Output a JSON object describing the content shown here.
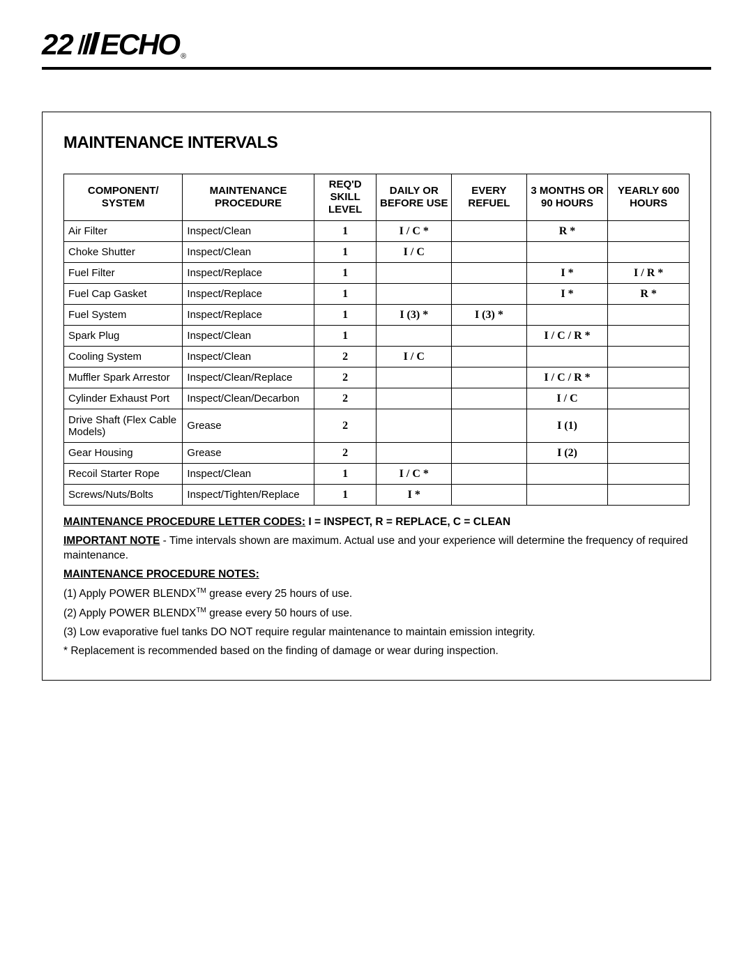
{
  "page_number": "22",
  "logo_text": "ECHO",
  "logo_reg": "®",
  "section_title": "MAINTENANCE INTERVALS",
  "table": {
    "headers": {
      "component": "COMPONENT/ SYSTEM",
      "procedure": "MAINTENANCE PROCEDURE",
      "skill": "REQ'D SKILL LEVEL",
      "daily": "DAILY OR BEFORE USE",
      "refuel": "EVERY REFUEL",
      "three_months": "3 MONTHS OR 90 HOURS",
      "yearly": "YEARLY 600 HOURS"
    },
    "rows": [
      {
        "component": "Air Filter",
        "procedure": "Inspect/Clean",
        "skill": "1",
        "daily": "I / C *",
        "refuel": "",
        "three_months": "R *",
        "yearly": ""
      },
      {
        "component": "Choke Shutter",
        "procedure": "Inspect/Clean",
        "skill": "1",
        "daily": "I / C",
        "refuel": "",
        "three_months": "",
        "yearly": ""
      },
      {
        "component": "Fuel Filter",
        "procedure": "Inspect/Replace",
        "skill": "1",
        "daily": "",
        "refuel": "",
        "three_months": "I *",
        "yearly": "I / R *"
      },
      {
        "component": "Fuel Cap Gasket",
        "procedure": "Inspect/Replace",
        "skill": "1",
        "daily": "",
        "refuel": "",
        "three_months": "I *",
        "yearly": "R *"
      },
      {
        "component": "Fuel System",
        "procedure": "Inspect/Replace",
        "skill": "1",
        "daily": "I (3) *",
        "refuel": "I (3) *",
        "three_months": "",
        "yearly": ""
      },
      {
        "component": "Spark Plug",
        "procedure": "Inspect/Clean",
        "skill": "1",
        "daily": "",
        "refuel": "",
        "three_months": "I / C / R *",
        "yearly": ""
      },
      {
        "component": "Cooling System",
        "procedure": "Inspect/Clean",
        "skill": "2",
        "daily": "I / C",
        "refuel": "",
        "three_months": "",
        "yearly": ""
      },
      {
        "component": "Muffler Spark Arrestor",
        "procedure": "Inspect/Clean/Replace",
        "skill": "2",
        "daily": "",
        "refuel": "",
        "three_months": "I / C / R *",
        "yearly": ""
      },
      {
        "component": "Cylinder Exhaust Port",
        "procedure": "Inspect/Clean/Decarbon",
        "skill": "2",
        "daily": "",
        "refuel": "",
        "three_months": "I / C",
        "yearly": ""
      },
      {
        "component": "Drive Shaft (Flex Cable Models)",
        "procedure": "Grease",
        "skill": "2",
        "daily": "",
        "refuel": "",
        "three_months": "I (1)",
        "yearly": "",
        "tall": true
      },
      {
        "component": "Gear Housing",
        "procedure": "Grease",
        "skill": "2",
        "daily": "",
        "refuel": "",
        "three_months": "I (2)",
        "yearly": ""
      },
      {
        "component": "Recoil Starter Rope",
        "procedure": "Inspect/Clean",
        "skill": "1",
        "daily": "I / C *",
        "refuel": "",
        "three_months": "",
        "yearly": ""
      },
      {
        "component": "Screws/Nuts/Bolts",
        "procedure": "Inspect/Tighten/Replace",
        "skill": "1",
        "daily": "I *",
        "refuel": "",
        "three_months": "",
        "yearly": ""
      }
    ]
  },
  "notes": {
    "codes_label": "MAINTENANCE PROCEDURE LETTER CODES:",
    "codes_text": "  I = INSPECT,  R = REPLACE,  C = CLEAN",
    "important_label": "IMPORTANT NOTE",
    "important_text": " - Time intervals shown are maximum. Actual use and your experience will determine the frequency of required maintenance.",
    "proc_notes_label": "MAINTENANCE PROCEDURE NOTES:",
    "n1_a": "(1) Apply POWER BLENDX",
    "n1_sup": "TM",
    "n1_b": " grease every 25 hours of use.",
    "n2_a": "(2) Apply POWER BLENDX",
    "n2_sup": "TM",
    "n2_b": " grease every 50 hours of use.",
    "n3": "(3) Low evaporative fuel tanks DO NOT require regular maintenance to maintain emission integrity.",
    "n4": "* Replacement is recommended based on the finding of damage or wear during inspection."
  }
}
